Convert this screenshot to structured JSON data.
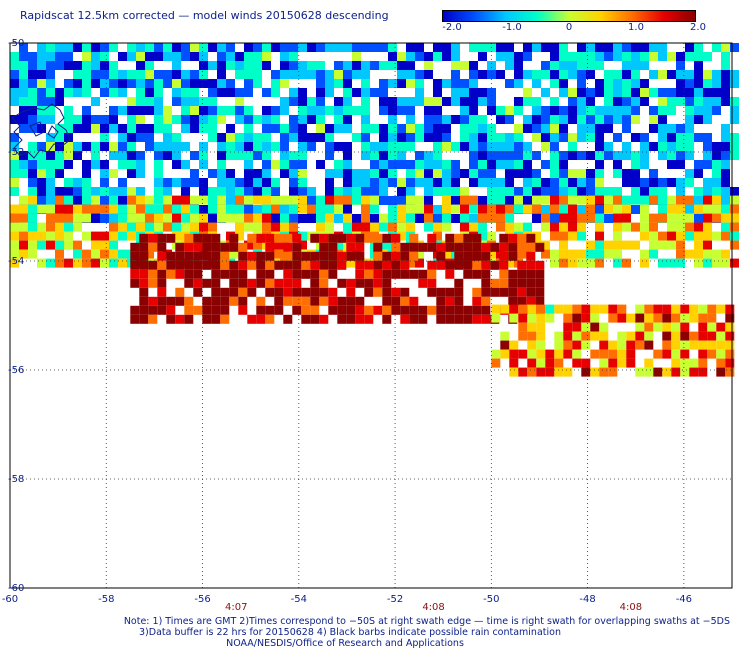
{
  "title": "Rapidscat 12.5km corrected — model winds 20150628 descending",
  "colorbar": {
    "labels": [
      "-2.0",
      "-1.0",
      "0",
      "1.0",
      "2.0"
    ],
    "min": -2.0,
    "max": 2.0,
    "colors": [
      "#0000c8",
      "#0050ff",
      "#00c8ff",
      "#00ffc8",
      "#c8ff32",
      "#ffd200",
      "#ff6e00",
      "#e60000",
      "#8b0000"
    ]
  },
  "chart_data": {
    "type": "heatmap",
    "title": "Rapidscat 12.5km corrected — model winds 20150628 descending",
    "xlim": [
      -60,
      -45
    ],
    "ylim": [
      -60,
      -50
    ],
    "xticks": [
      "-60",
      "-58",
      "-56",
      "-54",
      "-52",
      "-50",
      "-48",
      "-46"
    ],
    "yticks": [
      "-50",
      "-52",
      "-54",
      "-56",
      "-58",
      "-60"
    ],
    "grid": true,
    "value_range": [
      -2.0,
      2.0
    ],
    "swath_regions": [
      {
        "lon": [
          -60,
          -45
        ],
        "lat": [
          -53.2,
          -50
        ],
        "mean_value": -1.2
      },
      {
        "lon": [
          -60,
          -45
        ],
        "lat": [
          -54.0,
          -52.8
        ],
        "mean_value": 0.4
      },
      {
        "lon": [
          -57.5,
          -49
        ],
        "lat": [
          -55.0,
          -53.5
        ],
        "mean_value": 2.0
      },
      {
        "lon": [
          -50,
          -45
        ],
        "lat": [
          -56.0,
          -54.8
        ],
        "mean_value": 0.8
      }
    ],
    "time_labels": [
      {
        "lon": -55.3,
        "text": "4:07"
      },
      {
        "lon": -51.2,
        "text": "4:08"
      },
      {
        "lon": -47.1,
        "text": "4:08"
      }
    ]
  },
  "notes": [
    "Note: 1) Times are GMT 2)Times correspond to −50S at right swath edge — time is right swath for overlapping swaths at −5DS",
    "3)Data buffer is 22 hrs for 20150628 4) Black barbs indicate possible rain contamination",
    "NOAA/NESDIS/Office of Research and Applications"
  ]
}
